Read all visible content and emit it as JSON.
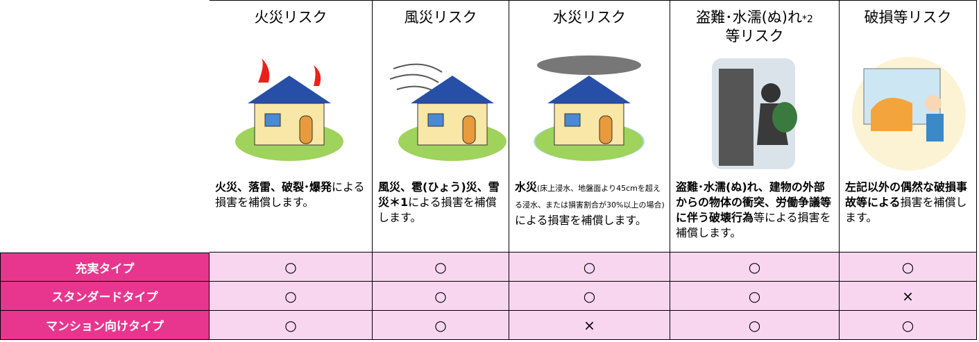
{
  "columns": [
    {
      "title": [
        {
          "text": "火災リスク"
        }
      ],
      "description": [
        {
          "text": "火災、落雷、破裂･爆発",
          "style": "bold"
        },
        {
          "text": "による損害を補償します。",
          "style": "normal"
        }
      ]
    },
    {
      "title": [
        {
          "text": "風災リスク"
        }
      ],
      "description": [
        {
          "text": "風災、雹(ひょう)災、雪災＊1",
          "style": "bold"
        },
        {
          "text": "による損害を補償します。",
          "style": "normal"
        }
      ]
    },
    {
      "title": [
        {
          "text": "水災リスク"
        }
      ],
      "description": [
        {
          "text": "水災",
          "style": "bold"
        },
        {
          "text": "(床上浸水、地盤面より45cmを超える浸水、または損害割合が30%以上の場合)",
          "style": "small"
        },
        {
          "text": "による損害を補償します。",
          "style": "normal"
        }
      ]
    },
    {
      "title": [
        {
          "text": "盗難･水濡(ぬ)れ"
        },
        {
          "text": "*2",
          "small": true
        },
        {
          "text": "等リスク",
          "newline": true
        }
      ],
      "description": [
        {
          "text": "盗難･水濡(ぬ)れ、建物の外部からの物体の衝突、労働争議等に伴う破壊行為",
          "style": "bold"
        },
        {
          "text": "等による損害を補償します。",
          "style": "normal"
        }
      ]
    },
    {
      "title": [
        {
          "text": "破損等リスク"
        }
      ],
      "description": [
        {
          "text": "左記以外の偶然な破損事故等による",
          "style": "bold"
        },
        {
          "text": "損害を補償します。",
          "style": "normal"
        }
      ]
    }
  ],
  "rows": [
    {
      "label": "充実タイプ",
      "marks": [
        "○",
        "○",
        "○",
        "○",
        "○"
      ]
    },
    {
      "label": "スタンダードタイプ",
      "marks": [
        "○",
        "○",
        "○",
        "○",
        "×"
      ]
    },
    {
      "label": "マンション向けタイプ",
      "marks": [
        "○",
        "○",
        "×",
        "○",
        "○"
      ]
    }
  ]
}
